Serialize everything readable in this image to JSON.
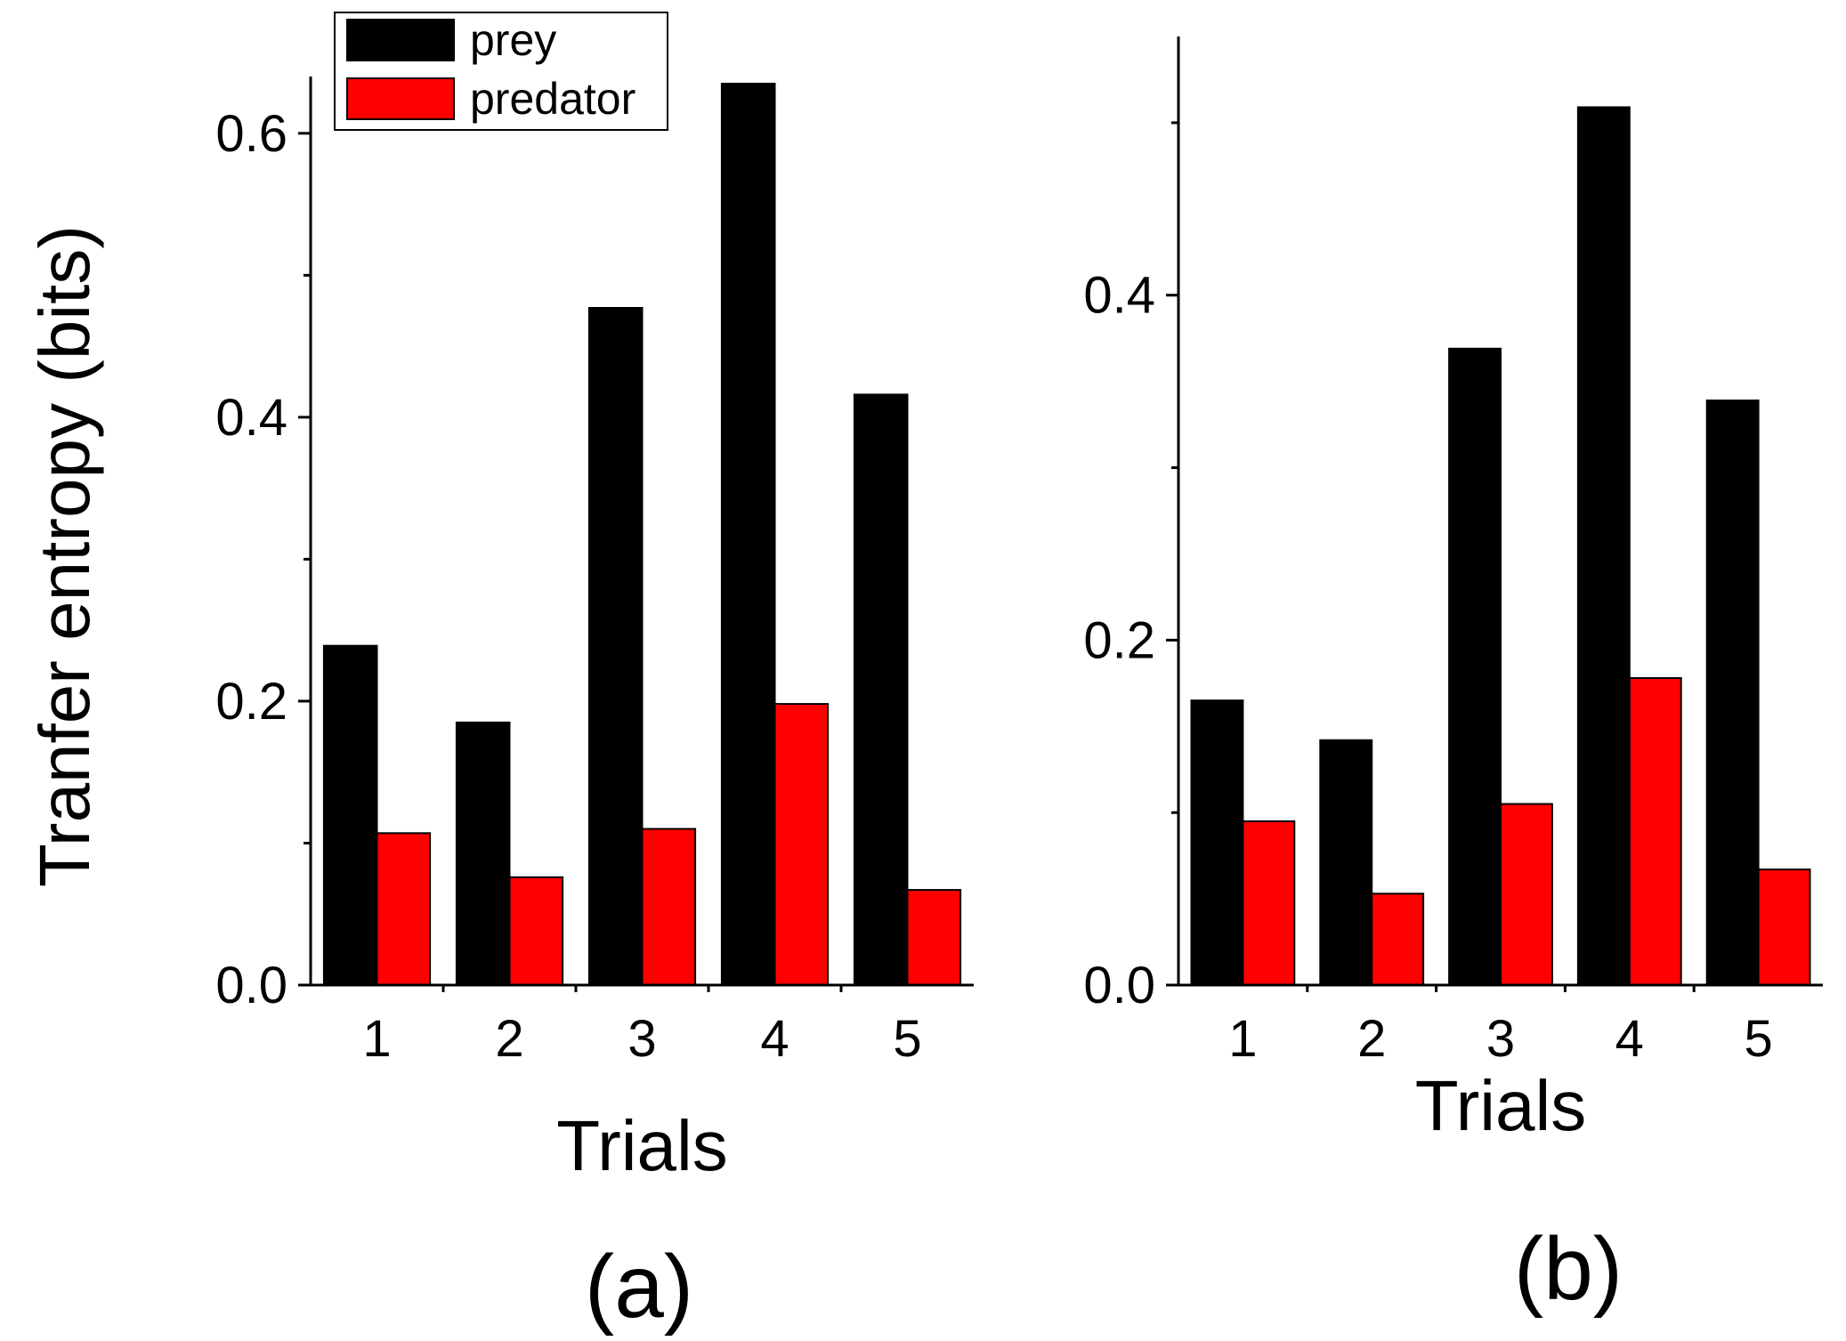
{
  "colors": {
    "prey": "#000000",
    "predator": "#ff0000",
    "axis": "#000000",
    "background": "#ffffff"
  },
  "legend": {
    "items": [
      {
        "label": "prey",
        "color": "#000000"
      },
      {
        "label": "predator",
        "color": "#ff0000"
      }
    ]
  },
  "chart_data": [
    {
      "type": "bar",
      "panel_label": "(a)",
      "title": "",
      "xlabel": "Trials",
      "ylabel": "Tranfer entropy (bits)",
      "categories": [
        "1",
        "2",
        "3",
        "4",
        "5"
      ],
      "ylim": [
        0,
        0.64
      ],
      "yticks": [
        0.0,
        0.2,
        0.4,
        0.6
      ],
      "ytick_labels": [
        "0.0",
        "0.2",
        "0.4",
        "0.6"
      ],
      "yminor_ticks": [
        0.1,
        0.3,
        0.5
      ],
      "legend_position": "top-center",
      "series": [
        {
          "name": "prey",
          "values": [
            0.239,
            0.185,
            0.477,
            0.635,
            0.416
          ]
        },
        {
          "name": "predator",
          "values": [
            0.107,
            0.076,
            0.11,
            0.198,
            0.067
          ]
        }
      ]
    },
    {
      "type": "bar",
      "panel_label": "(b)",
      "title": "",
      "xlabel": "Trials",
      "ylabel": "",
      "categories": [
        "1",
        "2",
        "3",
        "4",
        "5"
      ],
      "ylim": [
        0,
        0.55
      ],
      "yticks": [
        0.0,
        0.2,
        0.4
      ],
      "ytick_labels": [
        "0.0",
        "0.2",
        "0.4"
      ],
      "yminor_ticks": [
        0.1,
        0.3,
        0.5
      ],
      "series": [
        {
          "name": "prey",
          "values": [
            0.165,
            0.142,
            0.369,
            0.509,
            0.339
          ]
        },
        {
          "name": "predator",
          "values": [
            0.095,
            0.053,
            0.105,
            0.178,
            0.067
          ]
        }
      ]
    }
  ]
}
